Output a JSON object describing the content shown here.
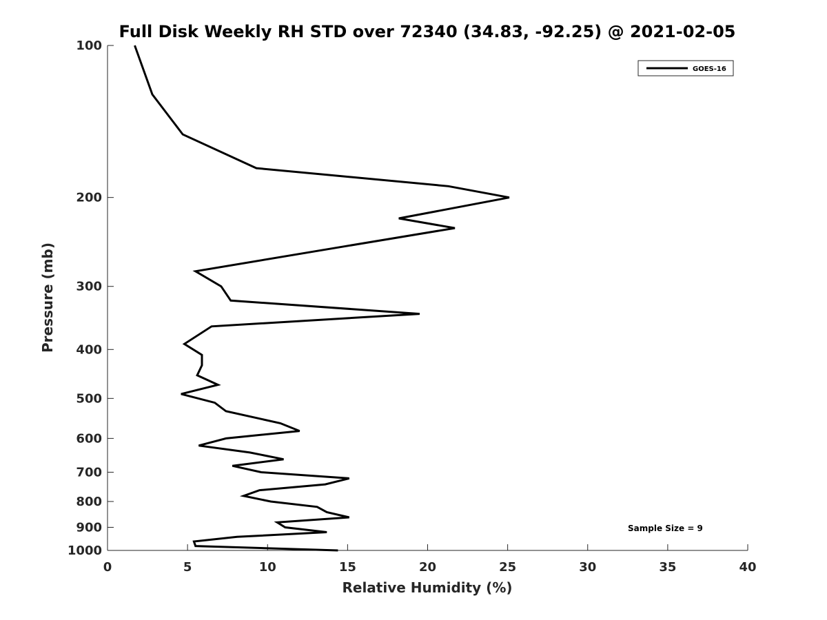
{
  "chart_data": {
    "type": "line",
    "title": "Full Disk Weekly RH STD over 72340 (34.83, -92.25) @ 2021-02-05",
    "xlabel": "Relative Humidity (%)",
    "ylabel": "Pressure (mb)",
    "xlim": [
      0,
      40
    ],
    "ylim": [
      100,
      1000
    ],
    "y_scale": "log",
    "y_reversed": true,
    "x_ticks": [
      0,
      5,
      10,
      15,
      20,
      25,
      30,
      35,
      40
    ],
    "y_ticks": [
      100,
      200,
      300,
      400,
      500,
      600,
      700,
      800,
      900,
      1000
    ],
    "grid": false,
    "legend_position": "top-right",
    "series": [
      {
        "name": "GOES-16",
        "color": "#000000",
        "points": [
          [
            1.7,
            100
          ],
          [
            2.8,
            125
          ],
          [
            4.7,
            150
          ],
          [
            9.3,
            175
          ],
          [
            21.3,
            190
          ],
          [
            25.1,
            200
          ],
          [
            18.2,
            220
          ],
          [
            21.7,
            230
          ],
          [
            14.8,
            250
          ],
          [
            5.5,
            280
          ],
          [
            7.1,
            300
          ],
          [
            7.7,
            320
          ],
          [
            19.5,
            340
          ],
          [
            6.5,
            360
          ],
          [
            4.8,
            390
          ],
          [
            5.9,
            410
          ],
          [
            5.9,
            430
          ],
          [
            5.6,
            450
          ],
          [
            6.9,
            470
          ],
          [
            4.6,
            490
          ],
          [
            6.7,
            510
          ],
          [
            7.4,
            530
          ],
          [
            10.8,
            560
          ],
          [
            12.0,
            580
          ],
          [
            7.4,
            600
          ],
          [
            5.7,
            620
          ],
          [
            8.9,
            640
          ],
          [
            11.0,
            660
          ],
          [
            7.8,
            680
          ],
          [
            9.6,
            700
          ],
          [
            15.1,
            720
          ],
          [
            13.6,
            740
          ],
          [
            9.5,
            760
          ],
          [
            8.5,
            780
          ],
          [
            10.2,
            800
          ],
          [
            13.1,
            820
          ],
          [
            13.7,
            840
          ],
          [
            15.1,
            860
          ],
          [
            10.6,
            880
          ],
          [
            11.1,
            900
          ],
          [
            13.7,
            920
          ],
          [
            8.1,
            940
          ],
          [
            5.4,
            960
          ],
          [
            5.5,
            980
          ],
          [
            14.4,
            1000
          ]
        ]
      }
    ],
    "annotations": [
      "Sample Size = 9"
    ]
  }
}
